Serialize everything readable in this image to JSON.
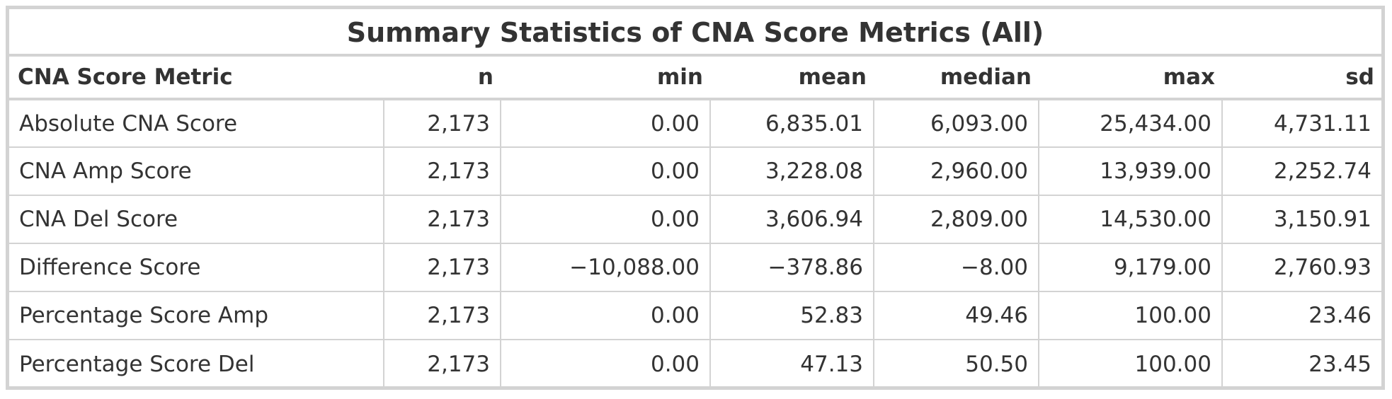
{
  "chart_data": {
    "type": "table",
    "title": "Summary Statistics of CNA Score Metrics (All)",
    "columns": [
      "CNA Score Metric",
      "n",
      "min",
      "mean",
      "median",
      "max",
      "sd"
    ],
    "rows": [
      [
        "Absolute CNA Score",
        "2,173",
        "0.00",
        "6,835.01",
        "6,093.00",
        "25,434.00",
        "4,731.11"
      ],
      [
        "CNA Amp Score",
        "2,173",
        "0.00",
        "3,228.08",
        "2,960.00",
        "13,939.00",
        "2,252.74"
      ],
      [
        "CNA Del Score",
        "2,173",
        "0.00",
        "3,606.94",
        "2,809.00",
        "14,530.00",
        "3,150.91"
      ],
      [
        "Difference Score",
        "2,173",
        "−10,088.00",
        "−378.86",
        "−8.00",
        "9,179.00",
        "2,760.93"
      ],
      [
        "Percentage Score Amp",
        "2,173",
        "0.00",
        "52.83",
        "49.46",
        "100.00",
        "23.46"
      ],
      [
        "Percentage Score Del",
        "2,173",
        "0.00",
        "47.13",
        "50.50",
        "100.00",
        "23.45"
      ]
    ]
  }
}
